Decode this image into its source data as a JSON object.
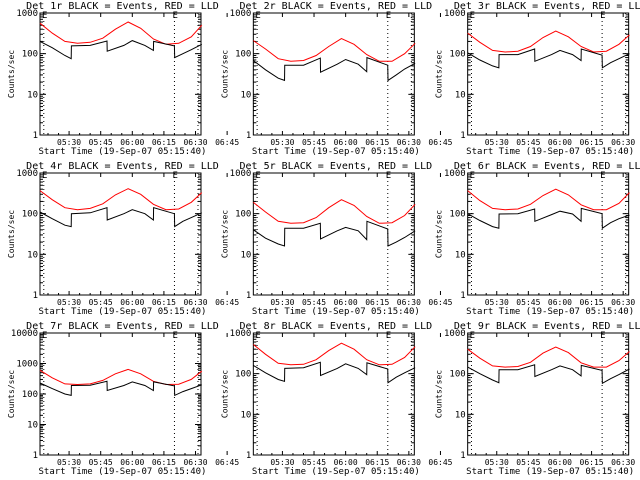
{
  "figure": {
    "rows": 3,
    "cols": 3,
    "colors": {
      "events": "#000000",
      "lld": "#ff0000",
      "axes": "#000000",
      "background": "#ffffff"
    }
  },
  "chart_data": [
    {
      "type": "line",
      "title": "Det 1r BLACK = Events, RED = LLD",
      "xlabel": "Start Time (19-Sep-07 05:15:40)",
      "ylabel": "Counts/sec",
      "yscale": "log",
      "ylim": [
        1,
        1000
      ],
      "yticks": [
        "1",
        "10",
        "100",
        "1000"
      ],
      "xticks": [
        "05:30",
        "05:45",
        "06:00",
        "06:15",
        "06:30",
        "06:45"
      ],
      "xlim_min": [
        16,
        93
      ],
      "vlines_min": [
        18,
        80,
        95
      ],
      "series": [
        {
          "name": "LLD",
          "color": "#ff0000",
          "x": [
            16,
            22,
            28,
            34,
            40,
            46,
            52,
            58,
            64,
            70,
            76,
            82,
            88,
            93
          ],
          "y": [
            560,
            320,
            200,
            180,
            190,
            240,
            400,
            600,
            420,
            230,
            170,
            180,
            260,
            500
          ]
        },
        {
          "name": "Events",
          "color": "#000000",
          "x": [
            16,
            22,
            28,
            31,
            31.1,
            40,
            48,
            48.1,
            56,
            60,
            66,
            70,
            70.1,
            80,
            80.1,
            84,
            88,
            93
          ],
          "y": [
            200,
            140,
            90,
            75,
            155,
            160,
            205,
            115,
            160,
            210,
            160,
            120,
            200,
            155,
            80,
            100,
            125,
            170
          ]
        }
      ]
    },
    {
      "type": "line",
      "title": "Det 2r BLACK = Events, RED = LLD",
      "xlabel": "Start Time (19-Sep-07 05:15:40)",
      "ylabel": "Counts/sec",
      "yscale": "log",
      "ylim": [
        1,
        1000
      ],
      "yticks": [
        "1",
        "10",
        "100",
        "1000"
      ],
      "xticks": [
        "05:30",
        "05:45",
        "06:00",
        "06:15",
        "06:30",
        "06:45"
      ],
      "xlim_min": [
        16,
        93
      ],
      "vlines_min": [
        18,
        80,
        95
      ],
      "series": [
        {
          "name": "LLD",
          "color": "#ff0000",
          "x": [
            16,
            22,
            28,
            34,
            40,
            46,
            52,
            58,
            64,
            70,
            76,
            82,
            88,
            93
          ],
          "y": [
            210,
            130,
            75,
            65,
            68,
            90,
            150,
            235,
            170,
            95,
            65,
            65,
            100,
            180
          ]
        },
        {
          "name": "Events",
          "color": "#000000",
          "x": [
            16,
            22,
            28,
            31,
            31.1,
            40,
            48,
            48.1,
            56,
            60,
            66,
            70,
            70.1,
            80,
            80.1,
            84,
            88,
            93
          ],
          "y": [
            68,
            40,
            25,
            22,
            52,
            52,
            78,
            35,
            55,
            72,
            55,
            36,
            80,
            52,
            22,
            30,
            42,
            58
          ]
        }
      ]
    },
    {
      "type": "line",
      "title": "Det 3r BLACK = Events, RED = LLD",
      "xlabel": "Start Time (19-Sep-07 05:15:40)",
      "ylabel": "Counts/sec",
      "yscale": "log",
      "ylim": [
        1,
        1000
      ],
      "yticks": [
        "1",
        "10",
        "100",
        "1000"
      ],
      "xticks": [
        "05:30",
        "05:45",
        "06:00",
        "06:15",
        "06:30",
        "06:45"
      ],
      "xlim_min": [
        16,
        93
      ],
      "vlines_min": [
        18,
        80,
        95
      ],
      "series": [
        {
          "name": "LLD",
          "color": "#ff0000",
          "x": [
            16,
            22,
            28,
            34,
            40,
            46,
            52,
            58,
            64,
            70,
            76,
            82,
            88,
            93
          ],
          "y": [
            320,
            190,
            120,
            110,
            115,
            150,
            250,
            360,
            260,
            150,
            110,
            115,
            170,
            290
          ]
        },
        {
          "name": "Events",
          "color": "#000000",
          "x": [
            16,
            22,
            28,
            31,
            31.1,
            40,
            48,
            48.1,
            56,
            60,
            66,
            70,
            70.1,
            80,
            80.1,
            84,
            88,
            93
          ],
          "y": [
            105,
            70,
            50,
            45,
            95,
            95,
            130,
            65,
            95,
            120,
            95,
            68,
            130,
            92,
            45,
            60,
            75,
            100
          ]
        }
      ]
    },
    {
      "type": "line",
      "title": "Det 4r BLACK = Events, RED = LLD",
      "xlabel": "Start Time (19-Sep-07 05:15:40)",
      "ylabel": "Counts/sec",
      "yscale": "log",
      "ylim": [
        1,
        1000
      ],
      "yticks": [
        "1",
        "10",
        "100",
        "1000"
      ],
      "xticks": [
        "05:30",
        "05:45",
        "06:00",
        "06:15",
        "06:30",
        "06:45"
      ],
      "xlim_min": [
        16,
        93
      ],
      "vlines_min": [
        18,
        80,
        95
      ],
      "series": [
        {
          "name": "LLD",
          "color": "#ff0000",
          "x": [
            16,
            22,
            28,
            34,
            40,
            46,
            52,
            58,
            64,
            70,
            76,
            82,
            88,
            93
          ],
          "y": [
            370,
            220,
            140,
            125,
            135,
            175,
            290,
            410,
            300,
            170,
            125,
            130,
            190,
            330
          ]
        },
        {
          "name": "Events",
          "color": "#000000",
          "x": [
            16,
            22,
            28,
            31,
            31.1,
            40,
            48,
            48.1,
            56,
            60,
            66,
            70,
            70.1,
            80,
            80.1,
            84,
            88,
            93
          ],
          "y": [
            110,
            75,
            52,
            48,
            100,
            105,
            140,
            70,
            100,
            125,
            100,
            70,
            140,
            100,
            48,
            65,
            80,
            105
          ]
        }
      ]
    },
    {
      "type": "line",
      "title": "Det 5r BLACK = Events, RED = LLD",
      "xlabel": "Start Time (19-Sep-07 05:15:40)",
      "ylabel": "Counts/sec",
      "yscale": "log",
      "ylim": [
        1,
        1000
      ],
      "yticks": [
        "1",
        "10",
        "100",
        "1000"
      ],
      "xticks": [
        "05:30",
        "05:45",
        "06:00",
        "06:15",
        "06:30",
        "06:45"
      ],
      "xlim_min": [
        16,
        93
      ],
      "vlines_min": [
        18,
        80,
        95
      ],
      "series": [
        {
          "name": "LLD",
          "color": "#ff0000",
          "x": [
            16,
            22,
            28,
            34,
            40,
            46,
            52,
            58,
            64,
            70,
            76,
            82,
            88,
            93
          ],
          "y": [
            190,
            110,
            65,
            58,
            60,
            80,
            140,
            220,
            160,
            85,
            58,
            60,
            90,
            170
          ]
        },
        {
          "name": "Events",
          "color": "#000000",
          "x": [
            16,
            22,
            28,
            31,
            31.1,
            40,
            48,
            48.1,
            56,
            60,
            66,
            70,
            70.1,
            80,
            80.1,
            84,
            88,
            93
          ],
          "y": [
            40,
            25,
            18,
            16,
            44,
            44,
            58,
            24,
            38,
            46,
            38,
            23,
            65,
            42,
            16,
            20,
            26,
            38
          ]
        }
      ]
    },
    {
      "type": "line",
      "title": "Det 6r BLACK = Events, RED = LLD",
      "xlabel": "Start Time (19-Sep-07 05:15:40)",
      "ylabel": "Counts/sec",
      "yscale": "log",
      "ylim": [
        1,
        1000
      ],
      "yticks": [
        "1",
        "10",
        "100",
        "1000"
      ],
      "xticks": [
        "05:30",
        "05:45",
        "06:00",
        "06:15",
        "06:30",
        "06:45"
      ],
      "xlim_min": [
        16,
        93
      ],
      "vlines_min": [
        18,
        80,
        95
      ],
      "series": [
        {
          "name": "LLD",
          "color": "#ff0000",
          "x": [
            16,
            22,
            28,
            34,
            40,
            46,
            52,
            58,
            64,
            70,
            76,
            82,
            88,
            93
          ],
          "y": [
            370,
            210,
            135,
            125,
            130,
            170,
            280,
            400,
            290,
            165,
            125,
            125,
            180,
            330
          ]
        },
        {
          "name": "Events",
          "color": "#000000",
          "x": [
            16,
            22,
            28,
            31,
            31.1,
            40,
            48,
            48.1,
            56,
            60,
            66,
            70,
            70.1,
            80,
            80.1,
            84,
            88,
            93
          ],
          "y": [
            100,
            68,
            48,
            44,
            98,
            100,
            130,
            65,
            95,
            115,
            98,
            65,
            135,
            100,
            44,
            60,
            75,
            92
          ]
        }
      ]
    },
    {
      "type": "line",
      "title": "Det 7r BLACK = Events, RED = LLD",
      "xlabel": "Start Time (19-Sep-07 05:15:40)",
      "ylabel": "Counts/sec",
      "yscale": "log",
      "ylim": [
        1,
        10000
      ],
      "yticks": [
        "1",
        "10",
        "100",
        "1000",
        "10000"
      ],
      "xticks": [
        "05:30",
        "05:45",
        "06:00",
        "06:15",
        "06:30",
        "06:45"
      ],
      "xlim_min": [
        16,
        93
      ],
      "vlines_min": [
        18,
        80,
        95
      ],
      "series": [
        {
          "name": "LLD",
          "color": "#ff0000",
          "x": [
            16,
            22,
            28,
            34,
            40,
            46,
            52,
            58,
            64,
            70,
            76,
            82,
            88,
            93
          ],
          "y": [
            600,
            340,
            215,
            205,
            215,
            280,
            460,
            640,
            460,
            260,
            205,
            210,
            300,
            560
          ]
        },
        {
          "name": "Events",
          "color": "#000000",
          "x": [
            16,
            22,
            28,
            31,
            31.1,
            40,
            48,
            48.1,
            56,
            60,
            66,
            70,
            70.1,
            80,
            80.1,
            84,
            88,
            93
          ],
          "y": [
            230,
            150,
            100,
            90,
            190,
            195,
            260,
            130,
            190,
            250,
            190,
            130,
            250,
            185,
            90,
            120,
            150,
            200
          ]
        }
      ]
    },
    {
      "type": "line",
      "title": "Det 8r BLACK = Events, RED = LLD",
      "xlabel": "Start Time (19-Sep-07 05:15:40)",
      "ylabel": "Counts/sec",
      "yscale": "log",
      "ylim": [
        1,
        1000
      ],
      "yticks": [
        "1",
        "10",
        "100",
        "1000"
      ],
      "xticks": [
        "05:30",
        "05:45",
        "06:00",
        "06:15",
        "06:30",
        "06:45"
      ],
      "xlim_min": [
        16,
        93
      ],
      "vlines_min": [
        18,
        80,
        95
      ],
      "series": [
        {
          "name": "LLD",
          "color": "#ff0000",
          "x": [
            16,
            22,
            28,
            34,
            40,
            46,
            52,
            58,
            64,
            70,
            76,
            82,
            88,
            93
          ],
          "y": [
            520,
            300,
            180,
            165,
            170,
            220,
            370,
            560,
            400,
            220,
            165,
            170,
            250,
            460
          ]
        },
        {
          "name": "Events",
          "color": "#000000",
          "x": [
            16,
            22,
            28,
            31,
            31.1,
            40,
            48,
            48.1,
            56,
            60,
            66,
            70,
            70.1,
            80,
            80.1,
            84,
            88,
            93
          ],
          "y": [
            160,
            105,
            72,
            65,
            135,
            140,
            190,
            90,
            135,
            175,
            135,
            95,
            185,
            130,
            60,
            82,
            105,
            140
          ]
        }
      ]
    },
    {
      "type": "line",
      "title": "Det 9r BLACK = Events, RED = LLD",
      "xlabel": "Start Time (19-Sep-07 05:15:40)",
      "ylabel": "Counts/sec",
      "yscale": "log",
      "ylim": [
        1,
        1000
      ],
      "yticks": [
        "1",
        "10",
        "100",
        "1000"
      ],
      "xticks": [
        "05:30",
        "05:45",
        "06:00",
        "06:15",
        "06:30",
        "06:45"
      ],
      "xlim_min": [
        16,
        93
      ],
      "vlines_min": [
        18,
        80,
        95
      ],
      "series": [
        {
          "name": "LLD",
          "color": "#ff0000",
          "x": [
            16,
            22,
            28,
            34,
            40,
            46,
            52,
            58,
            64,
            70,
            76,
            82,
            88,
            93
          ],
          "y": [
            400,
            240,
            155,
            145,
            150,
            190,
            320,
            450,
            330,
            185,
            145,
            145,
            210,
            350
          ]
        },
        {
          "name": "Events",
          "color": "#000000",
          "x": [
            16,
            22,
            28,
            31,
            31.1,
            40,
            48,
            48.1,
            56,
            60,
            66,
            70,
            70.1,
            80,
            80.1,
            84,
            88,
            93
          ],
          "y": [
            145,
            100,
            70,
            60,
            125,
            125,
            165,
            85,
            125,
            155,
            125,
            88,
            160,
            120,
            58,
            75,
            95,
            130
          ]
        }
      ]
    }
  ]
}
